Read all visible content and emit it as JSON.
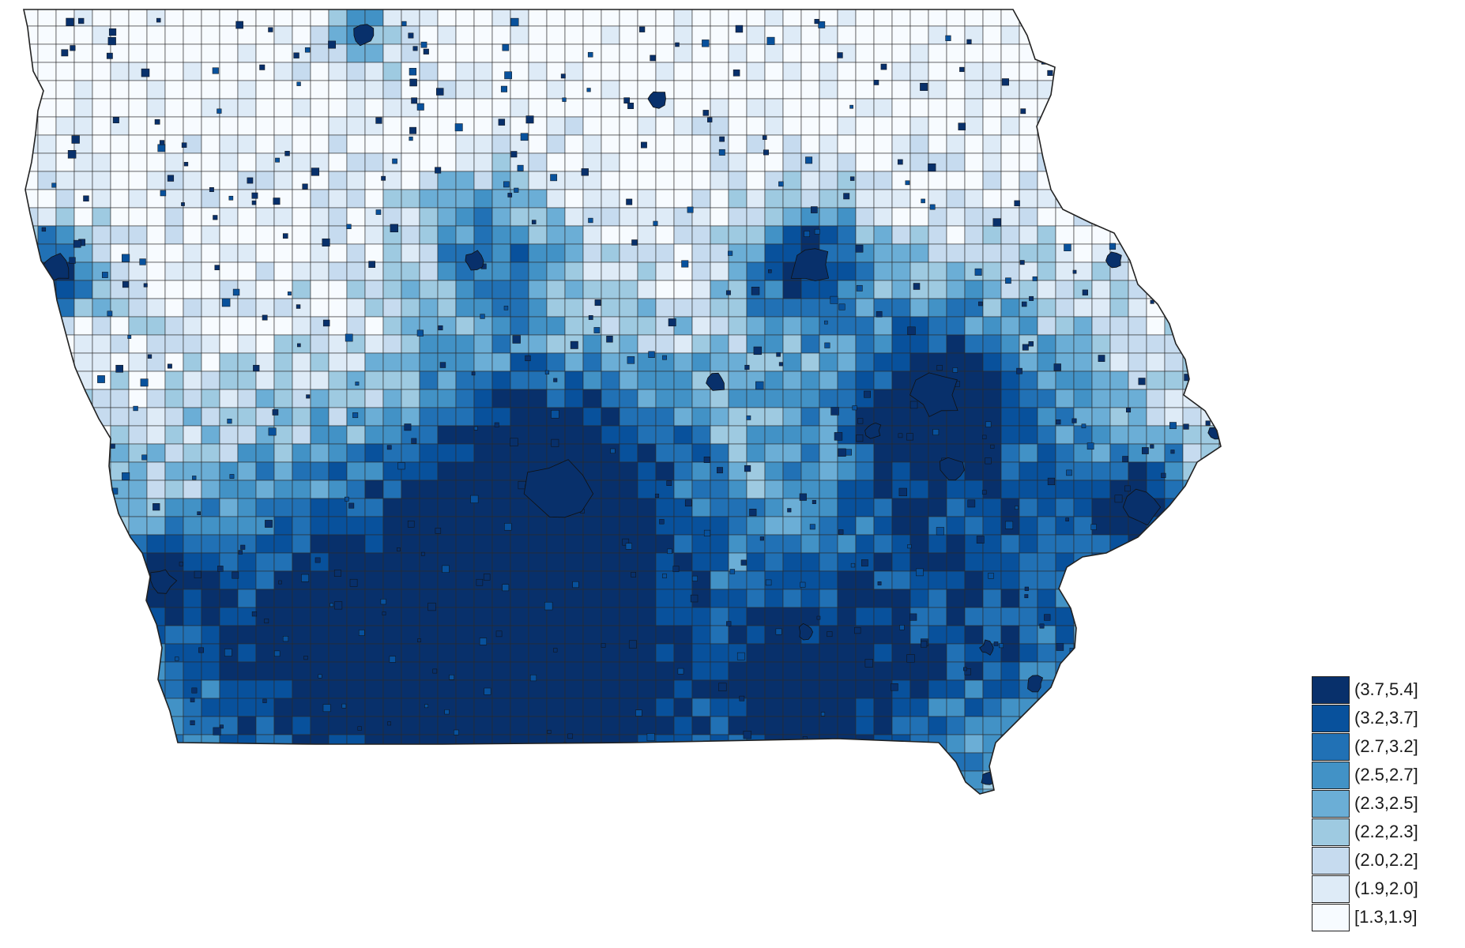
{
  "map": {
    "region": "Iowa",
    "fill_palette": [
      "#f7fbff",
      "#deebf7",
      "#c6dbef",
      "#9ecae1",
      "#6baed6",
      "#4292c6",
      "#2171b5",
      "#08519c",
      "#08306b"
    ],
    "boundary_color": "#2b2b2b"
  },
  "legend": {
    "items": [
      {
        "label": "(3.7,5.4]",
        "color": "#08306b"
      },
      {
        "label": "(3.2,3.7]",
        "color": "#08519c"
      },
      {
        "label": "(2.7,3.2]",
        "color": "#2171b5"
      },
      {
        "label": "(2.5,2.7]",
        "color": "#4292c6"
      },
      {
        "label": "(2.3,2.5]",
        "color": "#6baed6"
      },
      {
        "label": "(2.2,2.3]",
        "color": "#9ecae1"
      },
      {
        "label": "(2.0,2.2]",
        "color": "#c6dbef"
      },
      {
        "label": "(1.9,2.0]",
        "color": "#deebf7"
      },
      {
        "label": "[1.3,1.9]",
        "color": "#f7fbff"
      }
    ]
  }
}
